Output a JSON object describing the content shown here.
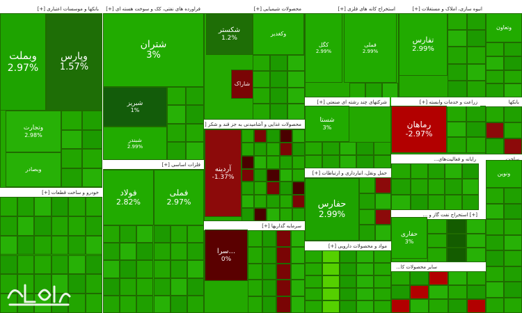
{
  "headers": [
    {
      "id": "h1",
      "text": "بانکها و موسسات اعتباری [+]"
    },
    {
      "id": "h2",
      "text": "فراورده های نفتی، کک و سوخت هسته ای [+]"
    },
    {
      "id": "h3",
      "text": "محصولات شیمیایی [+]"
    },
    {
      "id": "h4",
      "text": "استخراج کانه های فلزی [+]"
    },
    {
      "id": "h5",
      "text": "انبوه سازی، املاک و مستغلات [+]"
    },
    {
      "id": "h6",
      "text": "خودرو و ساخت قطعات [+]"
    },
    {
      "id": "h7",
      "text": "فلزات اساسی [+]"
    },
    {
      "id": "h8",
      "text": "محصولات غذایی و آشامیدنی به جز قند و شکر [+]"
    },
    {
      "id": "h9",
      "text": "شرکتهای چند رشته ای صنعتی [+]"
    },
    {
      "id": "h10",
      "text": "رایانه و فعالیت‌های..."
    },
    {
      "id": "h11",
      "text": "حمل ونقل، انبارداری و ارتباطات [+]"
    },
    {
      "id": "h12",
      "text": "سرمایه گذاریها [+]"
    },
    {
      "id": "h13",
      "text": "مواد و محصولات دارویی [+]"
    },
    {
      "id": "h14",
      "text": "زراعت و خدمات وابسته [+]"
    },
    {
      "id": "h15",
      "text": "بانکها"
    },
    {
      "id": "h16",
      "text": "ساخت ..."
    },
    {
      "id": "h17",
      "text": "[+] استخراج نفت گاز و ..."
    },
    {
      "id": "h18",
      "text": "سایر محصولات کا..."
    }
  ],
  "tiles": [
    {
      "id": "t1",
      "name": "وبملت",
      "pct": "2.97%",
      "color": "#1ea300",
      "big": true
    },
    {
      "id": "t2",
      "name": "وپارس",
      "pct": "1.57%",
      "color": "#1e6e06",
      "big": true
    },
    {
      "id": "t3",
      "name": "وتجارت",
      "pct": "2.98%",
      "color": "#27b106"
    },
    {
      "id": "t4",
      "name": "وبصادر",
      "pct": "",
      "color": "#27b106"
    },
    {
      "id": "t5",
      "name": "شتران",
      "pct": "3%",
      "color": "#21ab00",
      "big": true
    },
    {
      "id": "t6",
      "name": "شبریز",
      "pct": "1%",
      "color": "#135c0a"
    },
    {
      "id": "t7",
      "name": "شبندر",
      "pct": "2.99%",
      "color": "#21ab00"
    },
    {
      "id": "t8",
      "name": "شکستر",
      "pct": "1.2%",
      "color": "#1e6e06"
    },
    {
      "id": "t9",
      "name": "شاراک",
      "pct": "",
      "color": "#7a0505"
    },
    {
      "id": "t10",
      "name": "فولاد",
      "pct": "2.82%",
      "color": "#21ab00",
      "big": true
    },
    {
      "id": "t11",
      "name": "فملی",
      "pct": "2.97%",
      "color": "#21ab00",
      "big": true
    },
    {
      "id": "t12",
      "name": "آردینه",
      "pct": "-1.37%",
      "color": "#8c0a0a"
    },
    {
      "id": "t13",
      "name": "سرا...",
      "pct": "0%",
      "color": "#5a0000"
    },
    {
      "id": "t14",
      "name": "شستا",
      "pct": "3%",
      "color": "#21ab00"
    },
    {
      "id": "t15",
      "name": "حفارس",
      "pct": "2.99%",
      "color": "#1ea300",
      "big": true
    },
    {
      "id": "t16",
      "name": "رماهان",
      "pct": "-2.97%",
      "color": "#b20000",
      "big": true
    },
    {
      "id": "t17",
      "name": "وتعاون",
      "pct": "",
      "color": "#21ab00"
    },
    {
      "id": "t18",
      "name": "وکغدیر",
      "pct": "",
      "color": "#21ab00"
    },
    {
      "id": "t19",
      "name": "حفاری",
      "pct": "3%",
      "color": "#21ab00"
    },
    {
      "id": "t20",
      "name": "تفارس",
      "pct": "2.99%",
      "color": "#21ab00"
    },
    {
      "id": "t21",
      "name": "کگل",
      "pct": "2.99%",
      "color": "#21ab00"
    },
    {
      "id": "t22",
      "name": "فملی",
      "pct": "2.99%",
      "color": "#21ab00"
    },
    {
      "id": "t23",
      "name": "ونوین",
      "pct": "",
      "color": "#21ab00"
    }
  ],
  "logo_text": "خبر فوری"
}
